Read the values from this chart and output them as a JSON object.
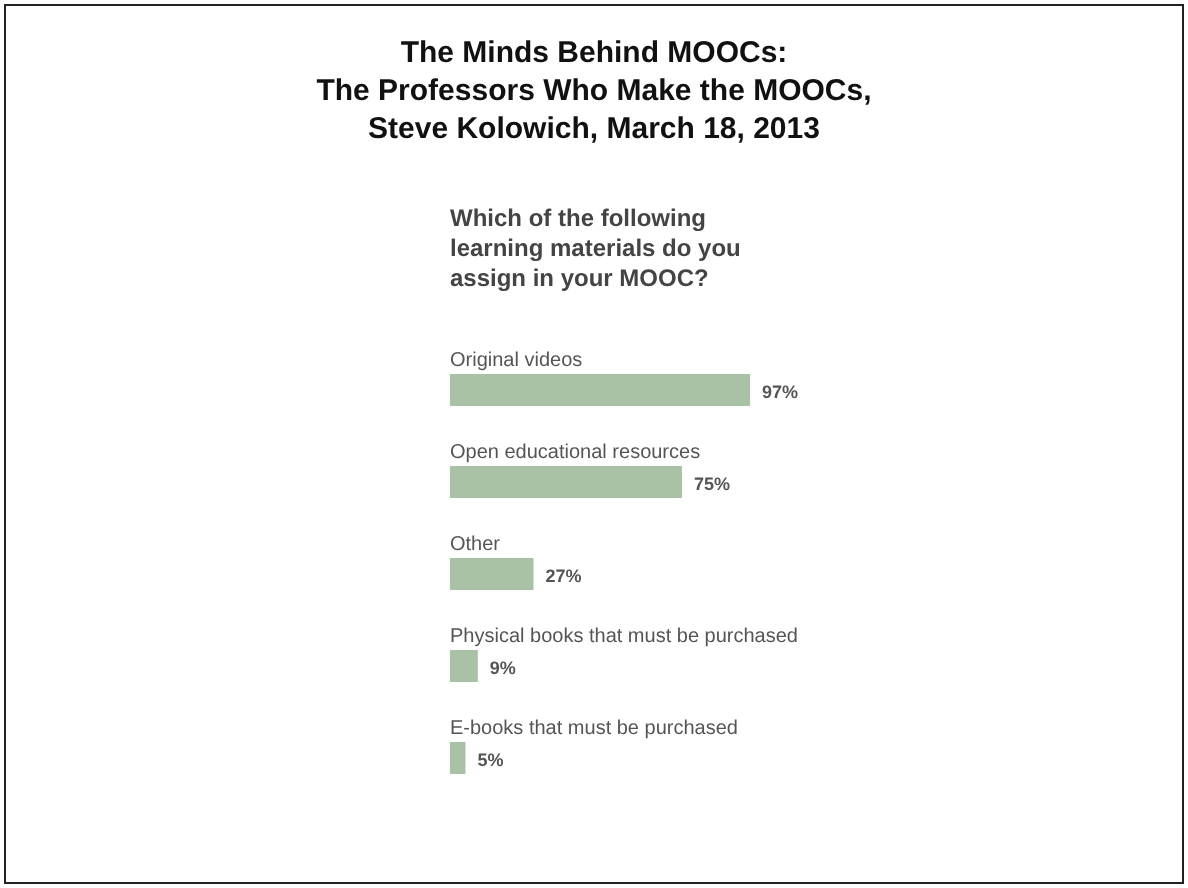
{
  "chart_data": {
    "type": "bar",
    "orientation": "horizontal",
    "title": "The Minds Behind MOOCs:\nThe Professors Who Make the MOOCs,\nSteve Kolowich, March 18, 2013",
    "subtitle": "Which of the following learning materials do you assign in your MOOC?",
    "categories": [
      "Original videos",
      "Open educational resources",
      "Other",
      "Physical books that must be purchased",
      "E-books that must be purchased"
    ],
    "values": [
      97,
      75,
      27,
      9,
      5
    ],
    "value_labels": [
      "97%",
      "75%",
      "27%",
      "9%",
      "5%"
    ],
    "color": "#a9c2a6"
  }
}
